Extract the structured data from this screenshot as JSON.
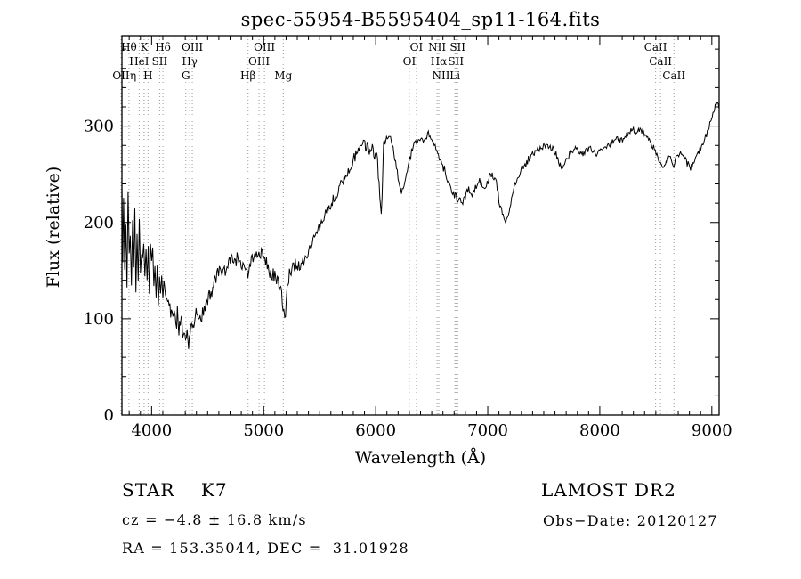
{
  "title": "spec-55954-B5595404_sp11-164.fits",
  "annotations": {
    "object_class": "STAR    K7",
    "survey": "LAMOST DR2",
    "cz": "cz = −4.8 ± 16.8 km/s",
    "obs_date": "Obs−Date: 20120127",
    "radec": "RA = 153.35044, DEC =  31.01928"
  },
  "chart_data": {
    "type": "line",
    "title": "spec-55954-B5595404_sp11-164.fits",
    "xlabel": "Wavelength (Å)",
    "ylabel": "Flux (relative)",
    "xlim": [
      3735,
      9065
    ],
    "ylim": [
      0,
      394
    ],
    "x_ticks": [
      4000,
      5000,
      6000,
      7000,
      8000,
      9000
    ],
    "y_ticks": [
      0,
      100,
      200,
      300
    ],
    "x_minor_step": 100,
    "y_minor_step": 20,
    "grid": false,
    "legend": "none",
    "line_color": "#000000",
    "marker_line_color": "#9a9a9a",
    "spectral_lines": [
      {
        "wavelength": 3727,
        "label": "OII",
        "row": 2
      },
      {
        "wavelength": 3798,
        "label": "Hθ",
        "row": 0
      },
      {
        "wavelength": 3835,
        "label": "η",
        "row": 2
      },
      {
        "wavelength": 3889,
        "label": "HeI",
        "row": 1
      },
      {
        "wavelength": 3933,
        "label": "K",
        "row": 0
      },
      {
        "wavelength": 3968,
        "label": "H",
        "row": 2
      },
      {
        "wavelength": 4072,
        "label": "SII",
        "row": 1
      },
      {
        "wavelength": 4101,
        "label": "Hδ",
        "row": 0
      },
      {
        "wavelength": 4305,
        "label": "G",
        "row": 2
      },
      {
        "wavelength": 4340,
        "label": "Hγ",
        "row": 1
      },
      {
        "wavelength": 4363,
        "label": "OIII",
        "row": 0
      },
      {
        "wavelength": 4861,
        "label": "Hβ",
        "row": 2
      },
      {
        "wavelength": 4959,
        "label": "OIII",
        "row": 1
      },
      {
        "wavelength": 5007,
        "label": "OIII",
        "row": 0
      },
      {
        "wavelength": 5175,
        "label": "Mg",
        "row": 2
      },
      {
        "wavelength": 6300,
        "label": "OI",
        "row": 1
      },
      {
        "wavelength": 6364,
        "label": "OI",
        "row": 0
      },
      {
        "wavelength": 6548,
        "label": "NII",
        "row": 0
      },
      {
        "wavelength": 6563,
        "label": "Hα",
        "row": 1
      },
      {
        "wavelength": 6583,
        "label": "NII",
        "row": 2
      },
      {
        "wavelength": 6707,
        "label": "Li",
        "row": 2
      },
      {
        "wavelength": 6716,
        "label": "SII",
        "row": 1
      },
      {
        "wavelength": 6731,
        "label": "SII",
        "row": 0
      },
      {
        "wavelength": 8498,
        "label": "CaII",
        "row": 0
      },
      {
        "wavelength": 8542,
        "label": "CaII",
        "row": 1
      },
      {
        "wavelength": 8662,
        "label": "CaII",
        "row": 2
      }
    ],
    "noise_profile": [
      [
        3735,
        20
      ],
      [
        4150,
        13
      ],
      [
        4500,
        8
      ],
      [
        5000,
        7
      ],
      [
        5250,
        7
      ],
      [
        5600,
        6
      ],
      [
        5950,
        6
      ],
      [
        6100,
        4
      ],
      [
        6450,
        4
      ],
      [
        6800,
        4
      ],
      [
        7200,
        4
      ],
      [
        7700,
        3
      ],
      [
        8300,
        3
      ],
      [
        8700,
        4
      ],
      [
        9065,
        3
      ]
    ],
    "points": [
      [
        3735,
        250
      ],
      [
        3742,
        160
      ],
      [
        3750,
        232
      ],
      [
        3760,
        148
      ],
      [
        3770,
        215
      ],
      [
        3780,
        140
      ],
      [
        3790,
        222
      ],
      [
        3800,
        152
      ],
      [
        3810,
        200
      ],
      [
        3820,
        135
      ],
      [
        3830,
        192
      ],
      [
        3840,
        155
      ],
      [
        3850,
        205
      ],
      [
        3860,
        145
      ],
      [
        3870,
        182
      ],
      [
        3880,
        150
      ],
      [
        3890,
        196
      ],
      [
        3900,
        140
      ],
      [
        3910,
        176
      ],
      [
        3920,
        150
      ],
      [
        3930,
        186
      ],
      [
        3940,
        136
      ],
      [
        3950,
        170
      ],
      [
        3960,
        146
      ],
      [
        3970,
        160
      ],
      [
        3980,
        130
      ],
      [
        3990,
        166
      ],
      [
        4000,
        150
      ],
      [
        4010,
        170
      ],
      [
        4020,
        136
      ],
      [
        4030,
        156
      ],
      [
        4040,
        126
      ],
      [
        4050,
        150
      ],
      [
        4060,
        120
      ],
      [
        4070,
        140
      ],
      [
        4080,
        116
      ],
      [
        4090,
        136
      ],
      [
        4100,
        110
      ],
      [
        4110,
        130
      ],
      [
        4130,
        112
      ],
      [
        4150,
        122
      ],
      [
        4170,
        100
      ],
      [
        4190,
        112
      ],
      [
        4210,
        95
      ],
      [
        4230,
        103
      ],
      [
        4250,
        88
      ],
      [
        4270,
        96
      ],
      [
        4290,
        82
      ],
      [
        4310,
        90
      ],
      [
        4330,
        78
      ],
      [
        4350,
        88
      ],
      [
        4370,
        95
      ],
      [
        4390,
        102
      ],
      [
        4410,
        108
      ],
      [
        4440,
        100
      ],
      [
        4470,
        112
      ],
      [
        4500,
        120
      ],
      [
        4530,
        128
      ],
      [
        4560,
        138
      ],
      [
        4590,
        146
      ],
      [
        4620,
        152
      ],
      [
        4650,
        148
      ],
      [
        4680,
        158
      ],
      [
        4710,
        162
      ],
      [
        4740,
        156
      ],
      [
        4770,
        166
      ],
      [
        4800,
        160
      ],
      [
        4830,
        154
      ],
      [
        4860,
        148
      ],
      [
        4890,
        160
      ],
      [
        4920,
        168
      ],
      [
        4950,
        163
      ],
      [
        4980,
        170
      ],
      [
        5010,
        166
      ],
      [
        5040,
        150
      ],
      [
        5070,
        147
      ],
      [
        5100,
        144
      ],
      [
        5130,
        138
      ],
      [
        5160,
        125
      ],
      [
        5180,
        108
      ],
      [
        5195,
        100
      ],
      [
        5210,
        130
      ],
      [
        5230,
        148
      ],
      [
        5260,
        152
      ],
      [
        5290,
        157
      ],
      [
        5320,
        154
      ],
      [
        5350,
        160
      ],
      [
        5380,
        166
      ],
      [
        5410,
        173
      ],
      [
        5440,
        180
      ],
      [
        5470,
        188
      ],
      [
        5500,
        196
      ],
      [
        5530,
        203
      ],
      [
        5560,
        209
      ],
      [
        5590,
        216
      ],
      [
        5620,
        223
      ],
      [
        5650,
        230
      ],
      [
        5680,
        237
      ],
      [
        5710,
        243
      ],
      [
        5740,
        250
      ],
      [
        5770,
        257
      ],
      [
        5800,
        265
      ],
      [
        5830,
        273
      ],
      [
        5860,
        280
      ],
      [
        5890,
        288
      ],
      [
        5910,
        276
      ],
      [
        5930,
        284
      ],
      [
        5950,
        271
      ],
      [
        5970,
        279
      ],
      [
        5990,
        267
      ],
      [
        6010,
        274
      ],
      [
        6030,
        238
      ],
      [
        6050,
        205
      ],
      [
        6070,
        280
      ],
      [
        6090,
        287
      ],
      [
        6110,
        291
      ],
      [
        6140,
        284
      ],
      [
        6170,
        268
      ],
      [
        6200,
        246
      ],
      [
        6230,
        233
      ],
      [
        6260,
        241
      ],
      [
        6290,
        260
      ],
      [
        6320,
        273
      ],
      [
        6350,
        282
      ],
      [
        6380,
        287
      ],
      [
        6410,
        289
      ],
      [
        6440,
        284
      ],
      [
        6470,
        291
      ],
      [
        6500,
        287
      ],
      [
        6530,
        279
      ],
      [
        6560,
        270
      ],
      [
        6590,
        261
      ],
      [
        6620,
        253
      ],
      [
        6650,
        241
      ],
      [
        6680,
        231
      ],
      [
        6710,
        227
      ],
      [
        6740,
        224
      ],
      [
        6770,
        221
      ],
      [
        6800,
        227
      ],
      [
        6830,
        234
      ],
      [
        6860,
        229
      ],
      [
        6890,
        237
      ],
      [
        6920,
        244
      ],
      [
        6950,
        239
      ],
      [
        6980,
        234
      ],
      [
        7010,
        247
      ],
      [
        7040,
        251
      ],
      [
        7070,
        244
      ],
      [
        7100,
        224
      ],
      [
        7130,
        207
      ],
      [
        7160,
        199
      ],
      [
        7190,
        211
      ],
      [
        7220,
        227
      ],
      [
        7250,
        241
      ],
      [
        7280,
        251
      ],
      [
        7310,
        257
      ],
      [
        7340,
        261
      ],
      [
        7370,
        267
      ],
      [
        7400,
        271
      ],
      [
        7430,
        274
      ],
      [
        7460,
        277
      ],
      [
        7490,
        279
      ],
      [
        7520,
        281
      ],
      [
        7550,
        279
      ],
      [
        7580,
        277
      ],
      [
        7610,
        271
      ],
      [
        7640,
        261
      ],
      [
        7670,
        254
      ],
      [
        7700,
        264
      ],
      [
        7730,
        271
      ],
      [
        7760,
        274
      ],
      [
        7790,
        277
      ],
      [
        7820,
        274
      ],
      [
        7850,
        271
      ],
      [
        7880,
        274
      ],
      [
        7910,
        277
      ],
      [
        7940,
        274
      ],
      [
        7970,
        271
      ],
      [
        8000,
        274
      ],
      [
        8030,
        277
      ],
      [
        8060,
        279
      ],
      [
        8090,
        281
      ],
      [
        8120,
        284
      ],
      [
        8150,
        287
      ],
      [
        8180,
        284
      ],
      [
        8210,
        287
      ],
      [
        8240,
        291
      ],
      [
        8270,
        294
      ],
      [
        8300,
        297
      ],
      [
        8330,
        294
      ],
      [
        8360,
        297
      ],
      [
        8390,
        294
      ],
      [
        8420,
        289
      ],
      [
        8450,
        284
      ],
      [
        8480,
        277
      ],
      [
        8510,
        269
      ],
      [
        8540,
        261
      ],
      [
        8570,
        257
      ],
      [
        8600,
        264
      ],
      [
        8630,
        269
      ],
      [
        8660,
        261
      ],
      [
        8690,
        267
      ],
      [
        8720,
        271
      ],
      [
        8750,
        267
      ],
      [
        8780,
        261
      ],
      [
        8810,
        257
      ],
      [
        8840,
        264
      ],
      [
        8870,
        271
      ],
      [
        8900,
        277
      ],
      [
        8930,
        284
      ],
      [
        8960,
        294
      ],
      [
        8990,
        304
      ],
      [
        9010,
        314
      ],
      [
        9030,
        321
      ],
      [
        9050,
        325
      ],
      [
        9065,
        318
      ]
    ]
  }
}
